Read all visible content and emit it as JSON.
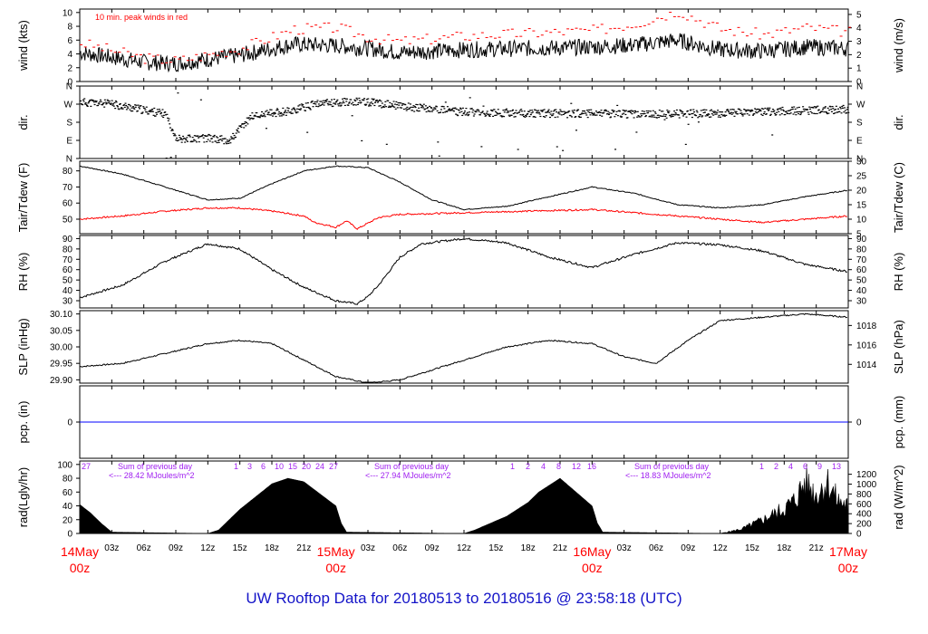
{
  "title": "UW Rooftop Data for 20180513  to  20180516 @ 23:58:18  (UTC)",
  "chart_data": [
    {
      "panel": "wind",
      "type": "line",
      "ylabel_left": "wind (kts)",
      "ylabel_right": "wind (m/s)",
      "annotation": "10 min. peak winds in red",
      "ylim": [
        0,
        10.5
      ],
      "yticks_left": [
        "0",
        "2",
        "4",
        "6",
        "8",
        "10"
      ],
      "yticks_right": [
        "0",
        "1",
        "2",
        "3",
        "4",
        "5"
      ],
      "colors": {
        "mean": "#000000",
        "peak": "#ff0000"
      },
      "series": [
        {
          "x": [
            0,
            6,
            9,
            12,
            15,
            20,
            24,
            27,
            30,
            36,
            42,
            48,
            52,
            56,
            60,
            64,
            68,
            72
          ],
          "values": [
            4.2,
            2.8,
            2.6,
            3.2,
            3.8,
            5.4,
            5.2,
            4.8,
            4.2,
            4.6,
            4.8,
            5.0,
            5.3,
            6.0,
            4.6,
            4.4,
            5.0,
            4.8
          ]
        },
        {
          "x": [
            0,
            6,
            9,
            12,
            15,
            20,
            24,
            27,
            30,
            36,
            42,
            48,
            52,
            56,
            60,
            64,
            68,
            72
          ],
          "values": [
            5.6,
            3.4,
            3.0,
            3.9,
            4.8,
            7.6,
            7.8,
            6.4,
            5.8,
            6.6,
            7.0,
            7.4,
            8.4,
            10.2,
            7.6,
            6.8,
            7.8,
            7.2
          ]
        }
      ]
    },
    {
      "panel": "direction",
      "type": "scatter",
      "ylabel_left": "dir.",
      "ylabel_right": "dir.",
      "yticks_left": [
        "N",
        "E",
        "S",
        "W",
        "N"
      ],
      "yticks_right": [
        "N",
        "E",
        "S",
        "W",
        "N"
      ],
      "ylim": [
        0,
        360
      ],
      "x": [
        0,
        3,
        6,
        8,
        9,
        12,
        14,
        16,
        18,
        20,
        22,
        24,
        27,
        30,
        36,
        42,
        48,
        54,
        60,
        66,
        72
      ],
      "values": [
        280,
        270,
        240,
        220,
        100,
        100,
        90,
        210,
        225,
        240,
        270,
        280,
        280,
        260,
        230,
        225,
        222,
        220,
        225,
        235,
        245
      ]
    },
    {
      "panel": "temperature",
      "type": "line",
      "ylabel_left": "Tair/Tdew (F)",
      "ylabel_right": "Tair/Tdew (C)",
      "ylim": [
        41,
        86
      ],
      "yticks_left": [
        "50",
        "60",
        "70",
        "80"
      ],
      "yticks_right": [
        "5",
        "10",
        "15",
        "20",
        "25",
        "30"
      ],
      "colors": {
        "tair": "#000000",
        "tdew": "#ff0000"
      },
      "series": [
        {
          "x": [
            0,
            4,
            8,
            12,
            15,
            18,
            21,
            24,
            27,
            30,
            33,
            36,
            40,
            44,
            48,
            52,
            56,
            60,
            64,
            68,
            72
          ],
          "values": [
            83,
            78,
            70,
            62,
            63,
            72,
            80,
            83,
            82,
            73,
            62,
            56,
            58,
            64,
            70,
            66,
            59,
            57,
            59,
            64,
            68
          ]
        },
        {
          "x": [
            0,
            4,
            8,
            12,
            15,
            18,
            21,
            22,
            24,
            25,
            26,
            28,
            30,
            36,
            42,
            48,
            54,
            60,
            64,
            68,
            72
          ],
          "values": [
            50,
            52,
            55,
            57,
            57,
            55,
            52,
            48,
            45,
            49,
            44,
            51,
            53,
            54,
            55,
            56,
            53,
            50,
            48,
            50,
            52
          ]
        }
      ]
    },
    {
      "panel": "humidity",
      "type": "line",
      "ylabel_left": "RH (%)",
      "ylabel_right": "RH (%)",
      "ylim": [
        23,
        93
      ],
      "yticks_left": [
        "30",
        "40",
        "50",
        "60",
        "70",
        "80",
        "90"
      ],
      "yticks_right": [
        "30",
        "40",
        "50",
        "60",
        "70",
        "80",
        "90"
      ],
      "x": [
        0,
        4,
        8,
        12,
        15,
        18,
        21,
        24,
        26,
        27,
        28,
        30,
        32,
        36,
        40,
        44,
        48,
        52,
        56,
        60,
        64,
        68,
        72
      ],
      "values": [
        33,
        45,
        68,
        85,
        80,
        60,
        43,
        30,
        27,
        34,
        45,
        72,
        85,
        90,
        86,
        72,
        62,
        75,
        86,
        84,
        78,
        65,
        58
      ]
    },
    {
      "panel": "pressure",
      "type": "line",
      "ylabel_left": "SLP (inHg)",
      "ylabel_right": "SLP (hPa)",
      "ylim": [
        29.89,
        30.11
      ],
      "yticks_left": [
        "29.90",
        "29.95",
        "30.00",
        "30.05",
        "30.10"
      ],
      "yticks_right": [
        "1014",
        "1016",
        "1018"
      ],
      "x": [
        0,
        4,
        8,
        12,
        15,
        18,
        21,
        24,
        27,
        30,
        33,
        36,
        40,
        44,
        48,
        51,
        54,
        57,
        60,
        64,
        68,
        72
      ],
      "values": [
        29.94,
        29.95,
        29.98,
        30.01,
        30.02,
        30.01,
        29.96,
        29.91,
        29.89,
        29.9,
        29.93,
        29.96,
        30.0,
        30.02,
        30.01,
        29.97,
        29.95,
        30.02,
        30.08,
        30.09,
        30.1,
        30.09
      ]
    },
    {
      "panel": "precipitation",
      "type": "line",
      "ylabel_left": "pcp. (in)",
      "ylabel_right": "pcp. (mm)",
      "ytick_left": "0",
      "ytick_right": "0",
      "color": "#0000ff",
      "x": [
        0,
        72
      ],
      "values": [
        0,
        0
      ]
    },
    {
      "panel": "radiation",
      "type": "area",
      "ylabel_left": "rad(Lgly/hr)",
      "ylabel_right": "rad (W/m^2)",
      "ylim": [
        0,
        105
      ],
      "yticks_left": [
        "0",
        "20",
        "40",
        "60",
        "80",
        "100"
      ],
      "yticks_right": [
        "0",
        "200",
        "400",
        "600",
        "800",
        "1000",
        "1200"
      ],
      "daily_sums": [
        "Sum of previous day",
        "<--- 28.42 MJoules/m^2",
        "Sum of previous day",
        "<--- 27.94 MJoules/m^2",
        "Sum of previous day",
        "<--- 18.83 MJoules/m^2"
      ],
      "hour_marks": [
        [
          "27"
        ],
        [
          "1",
          "3",
          "6",
          "10",
          "15",
          "20",
          "24",
          "27"
        ],
        [
          "1",
          "2",
          "4",
          "8",
          "12",
          "16"
        ],
        [
          "1",
          "2",
          "4",
          "6",
          "9",
          "13"
        ]
      ],
      "x": [
        0,
        1,
        2,
        3,
        12,
        13,
        15,
        18,
        19.5,
        21,
        24,
        24.5,
        25,
        36,
        37,
        40,
        42,
        43,
        45,
        48,
        48.5,
        49,
        60,
        62,
        64,
        66,
        67,
        68,
        69,
        70,
        71,
        72
      ],
      "values": [
        42,
        30,
        15,
        2,
        0,
        5,
        35,
        72,
        80,
        75,
        40,
        15,
        2,
        0,
        5,
        25,
        45,
        60,
        80,
        40,
        15,
        2,
        0,
        8,
        25,
        45,
        60,
        95,
        70,
        95,
        60,
        50
      ]
    }
  ],
  "x_axis": {
    "hour_labels": [
      "03z",
      "06z",
      "09z",
      "12z",
      "15z",
      "18z",
      "21z"
    ],
    "day_labels": [
      {
        "date": "14May",
        "time": "00z"
      },
      {
        "date": "15May",
        "time": "00z"
      },
      {
        "date": "16May",
        "time": "00z"
      },
      {
        "date": "17May",
        "time": "00z"
      }
    ],
    "range_hours": [
      0,
      72
    ]
  }
}
